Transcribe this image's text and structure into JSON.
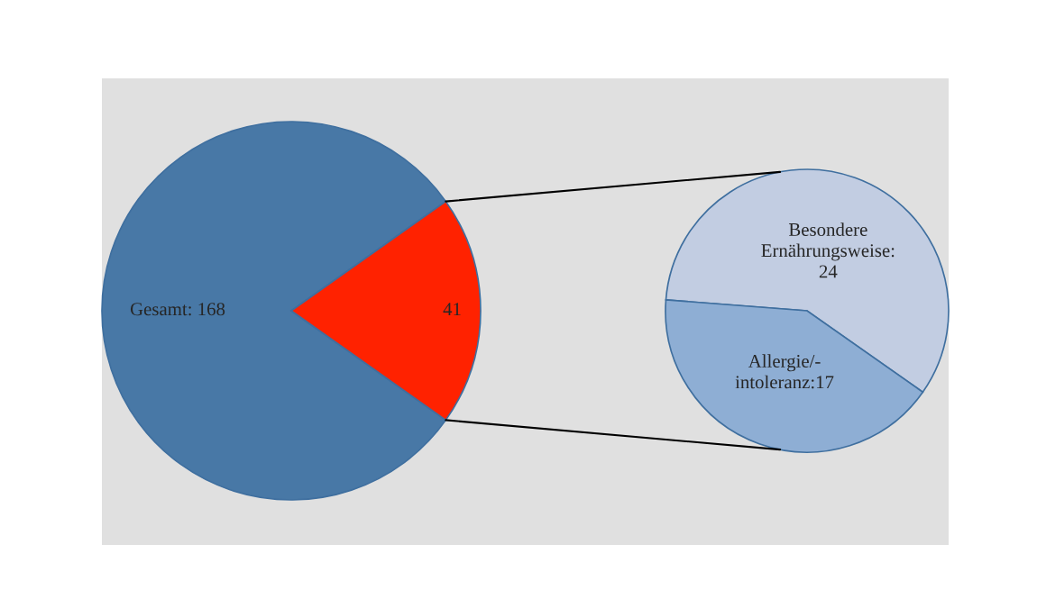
{
  "chart_data": [
    {
      "type": "pie",
      "categories": [
        null,
        null
      ],
      "values": [
        168,
        41
      ],
      "colors": [
        "#4878a6",
        "#ff2200"
      ],
      "value_labels": [
        "Gesamt: 168",
        "41"
      ]
    },
    {
      "type": "pie",
      "categories": [
        null,
        null
      ],
      "values": [
        24,
        17
      ],
      "colors": [
        "#c2cde2",
        "#8eaed4"
      ],
      "value_labels": [
        "Besondere\nErnährungsweise:\n24",
        "Allergie/-\nintoleranz:17"
      ]
    }
  ]
}
